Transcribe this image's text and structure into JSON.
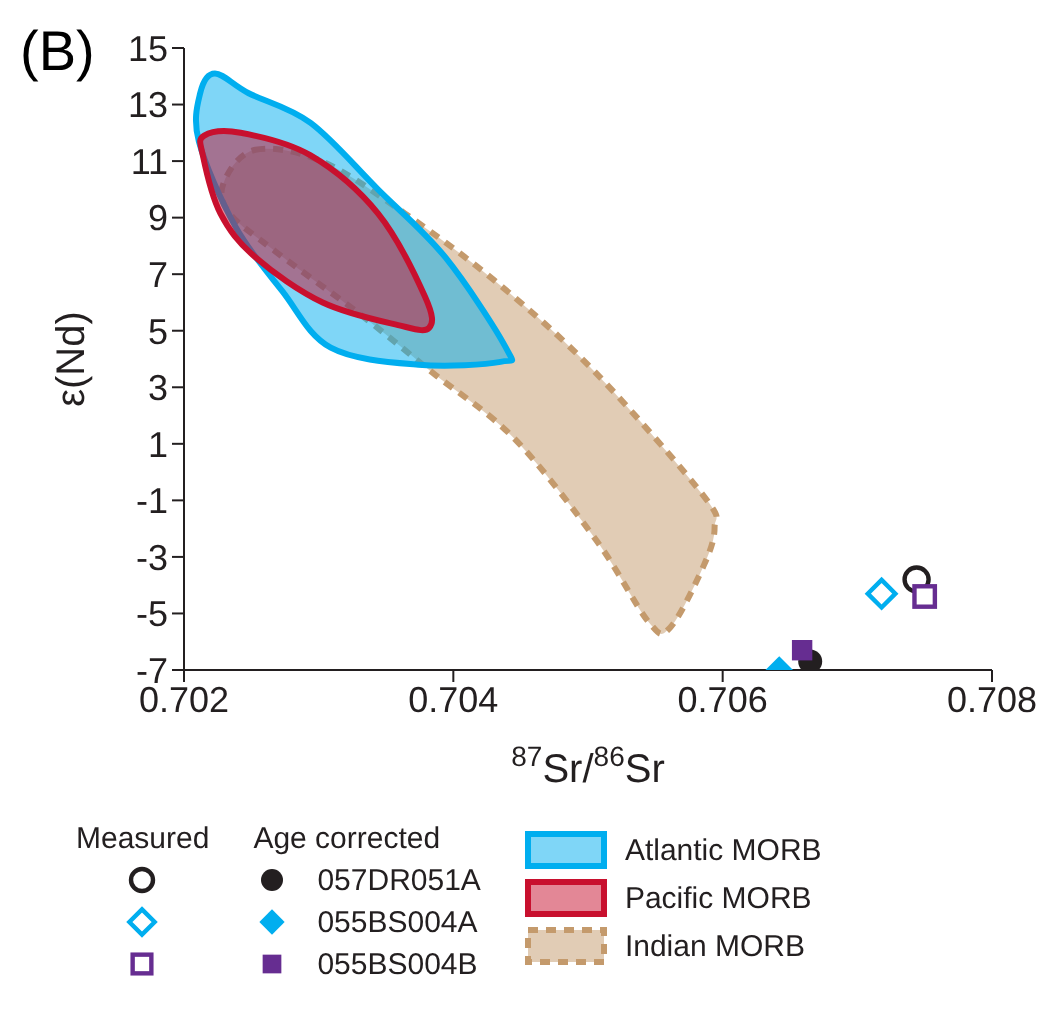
{
  "chart_data": {
    "type": "scatter",
    "title": "(B)",
    "xlabel": "$^{87}$Sr/$^{86}$Sr",
    "ylabel": "ε(Nd)",
    "xlim": [
      0.702,
      0.708
    ],
    "xticks": [
      0.702,
      0.704,
      0.706,
      0.708
    ],
    "ylim": [
      -7,
      15
    ],
    "yticks": [
      15,
      13,
      11,
      9,
      7,
      5,
      3,
      1,
      -1,
      -3,
      -5,
      -7
    ],
    "grid": false,
    "legend": "bottom",
    "annotations": [
      "Measured",
      "Age corrected"
    ],
    "series": [
      {
        "name": "Atlantic MORB",
        "type": "area",
        "color": "#00aeef",
        "line_style": "solid",
        "x": [
          0.70223,
          0.70248,
          0.70294,
          0.70344,
          0.70394,
          0.70439,
          0.70435,
          0.70374,
          0.70309,
          0.70273,
          0.70238,
          0.70211,
          0.70212
        ],
        "values": [
          14.1,
          13.4,
          12.35,
          10.0,
          7.6,
          4.4,
          3.9,
          3.8,
          4.4,
          6.4,
          8.7,
          11.7,
          13.4
        ]
      },
      {
        "name": "Pacific MORB",
        "type": "area",
        "color": "#c8102e",
        "line_style": "solid",
        "x": [
          0.70215,
          0.70242,
          0.70294,
          0.70344,
          0.70379,
          0.70382,
          0.70359,
          0.70303,
          0.70253,
          0.70227,
          0.70214
        ],
        "values": [
          11.9,
          12.0,
          11.2,
          9.15,
          6.2,
          5.1,
          5.2,
          6.0,
          7.6,
          9.15,
          11.2
        ]
      },
      {
        "name": "Indian MORB",
        "type": "area",
        "color": "#c49a6c",
        "line_style": "dashed",
        "x": [
          0.70253,
          0.70302,
          0.70364,
          0.70435,
          0.70506,
          0.70586,
          0.70594,
          0.70586,
          0.70561,
          0.70545,
          0.70506,
          0.70445,
          0.70385,
          0.70333,
          0.70268,
          0.70233,
          0.7023
        ],
        "values": [
          11.4,
          11.0,
          9.15,
          6.6,
          3.5,
          -0.85,
          -1.95,
          -3.3,
          -5.5,
          -5.3,
          -2.4,
          1.2,
          3.5,
          5.5,
          7.8,
          9.2,
          10.3
        ]
      },
      {
        "type": "scatter",
        "marker": "circle",
        "color": "#231f20",
        "x": [
          0.70744
        ],
        "values": [
          -3.8
        ]
      },
      {
        "type": "scatter",
        "marker": "diamond",
        "color": "#00aeef",
        "x": [
          0.70718
        ],
        "values": [
          -4.3
        ]
      },
      {
        "type": "scatter",
        "marker": "square",
        "color": "#662d91",
        "x": [
          0.7075
        ],
        "values": [
          -4.4
        ]
      },
      {
        "name": "057DR051A",
        "type": "scatter",
        "marker": "circle",
        "color": "#231f20",
        "x": [
          0.70665
        ],
        "values": [
          -6.7
        ]
      },
      {
        "name": "055BS004A",
        "type": "scatter",
        "marker": "diamond",
        "color": "#00aeef",
        "x": [
          0.70642
        ],
        "values": [
          -7.0
        ]
      },
      {
        "name": "055BS004B",
        "type": "scatter",
        "marker": "square",
        "color": "#662d91",
        "x": [
          0.70659
        ],
        "values": [
          -6.3
        ]
      }
    ]
  }
}
